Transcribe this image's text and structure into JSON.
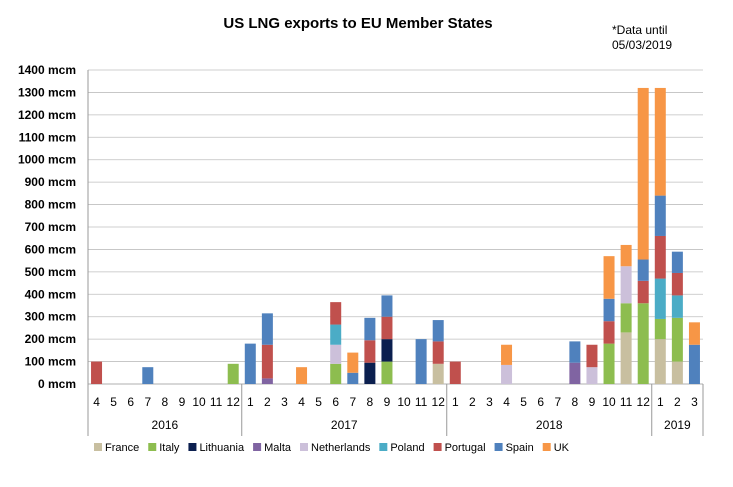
{
  "chart_data": {
    "type": "bar",
    "stacked": true,
    "title": "US LNG exports to EU Member States",
    "note_lines": [
      "*Data until",
      "05/03/2019"
    ],
    "yticks": [
      "0 mcm",
      "100 mcm",
      "200 mcm",
      "300 mcm",
      "400 mcm",
      "500 mcm",
      "600 mcm",
      "700 mcm",
      "800 mcm",
      "900 mcm",
      "1000 mcm",
      "1100 mcm",
      "1200 mcm",
      "1300 mcm",
      "1400 mcm"
    ],
    "ylim": [
      0,
      1400
    ],
    "grid": true,
    "legend_position": "bottom",
    "categories": [
      "4",
      "5",
      "6",
      "7",
      "8",
      "9",
      "10",
      "11",
      "12",
      "1",
      "2",
      "3",
      "4",
      "5",
      "6",
      "7",
      "8",
      "9",
      "10",
      "11",
      "12",
      "1",
      "2",
      "3",
      "4",
      "5",
      "6",
      "7",
      "8",
      "9",
      "10",
      "11",
      "12",
      "1",
      "2",
      "3"
    ],
    "years": [
      {
        "label": "2016",
        "start": 0,
        "end": 8
      },
      {
        "label": "2017",
        "start": 9,
        "end": 20
      },
      {
        "label": "2018",
        "start": 21,
        "end": 32
      },
      {
        "label": "2019",
        "start": 33,
        "end": 35
      }
    ],
    "series": [
      {
        "name": "France",
        "color": "#c8bfa0",
        "values": [
          0,
          0,
          0,
          0,
          0,
          0,
          0,
          0,
          0,
          0,
          0,
          0,
          0,
          0,
          0,
          0,
          0,
          0,
          0,
          0,
          90,
          0,
          0,
          0,
          0,
          0,
          0,
          0,
          0,
          0,
          0,
          230,
          0,
          200,
          100,
          0
        ]
      },
      {
        "name": "Italy",
        "color": "#8dbd4f",
        "values": [
          0,
          0,
          0,
          0,
          0,
          0,
          0,
          0,
          90,
          0,
          0,
          0,
          0,
          0,
          90,
          0,
          0,
          100,
          0,
          0,
          0,
          0,
          0,
          0,
          0,
          0,
          0,
          0,
          0,
          0,
          180,
          130,
          360,
          90,
          195,
          0
        ]
      },
      {
        "name": "Lithuania",
        "color": "#0b1f4f",
        "values": [
          0,
          0,
          0,
          0,
          0,
          0,
          0,
          0,
          0,
          0,
          0,
          0,
          0,
          0,
          0,
          0,
          95,
          100,
          0,
          0,
          0,
          0,
          0,
          0,
          0,
          0,
          0,
          0,
          0,
          0,
          0,
          0,
          0,
          0,
          0,
          0
        ]
      },
      {
        "name": "Malta",
        "color": "#8064a2",
        "values": [
          0,
          0,
          0,
          0,
          0,
          0,
          0,
          0,
          0,
          0,
          25,
          0,
          0,
          0,
          0,
          0,
          0,
          0,
          0,
          0,
          0,
          0,
          0,
          0,
          0,
          0,
          0,
          0,
          95,
          0,
          0,
          0,
          0,
          0,
          0,
          0
        ]
      },
      {
        "name": "Netherlands",
        "color": "#ccc0da",
        "values": [
          0,
          0,
          0,
          0,
          0,
          0,
          0,
          0,
          0,
          0,
          0,
          0,
          0,
          0,
          85,
          0,
          0,
          0,
          0,
          0,
          0,
          0,
          0,
          0,
          85,
          0,
          0,
          0,
          0,
          75,
          0,
          165,
          0,
          0,
          0,
          0
        ]
      },
      {
        "name": "Poland",
        "color": "#4bacc6",
        "values": [
          0,
          0,
          0,
          0,
          0,
          0,
          0,
          0,
          0,
          0,
          0,
          0,
          0,
          0,
          90,
          0,
          0,
          0,
          0,
          0,
          0,
          0,
          0,
          0,
          0,
          0,
          0,
          0,
          0,
          0,
          0,
          0,
          0,
          180,
          100,
          0
        ]
      },
      {
        "name": "Portugal",
        "color": "#c0504d",
        "values": [
          100,
          0,
          0,
          0,
          0,
          0,
          0,
          0,
          0,
          0,
          150,
          0,
          0,
          0,
          100,
          0,
          100,
          100,
          0,
          0,
          100,
          100,
          0,
          0,
          0,
          0,
          0,
          0,
          0,
          100,
          100,
          0,
          100,
          190,
          100,
          0
        ]
      },
      {
        "name": "Spain",
        "color": "#4f81bd",
        "values": [
          0,
          0,
          0,
          75,
          0,
          0,
          0,
          0,
          0,
          180,
          140,
          0,
          0,
          0,
          0,
          50,
          100,
          95,
          0,
          200,
          95,
          0,
          0,
          0,
          0,
          0,
          0,
          0,
          95,
          0,
          100,
          0,
          95,
          180,
          95,
          175
        ]
      },
      {
        "name": "UK",
        "color": "#f79646",
        "values": [
          0,
          0,
          0,
          0,
          0,
          0,
          0,
          0,
          0,
          0,
          0,
          0,
          75,
          0,
          0,
          90,
          0,
          0,
          0,
          0,
          0,
          0,
          0,
          0,
          90,
          0,
          0,
          0,
          0,
          0,
          190,
          95,
          765,
          480,
          0,
          100
        ]
      }
    ]
  }
}
